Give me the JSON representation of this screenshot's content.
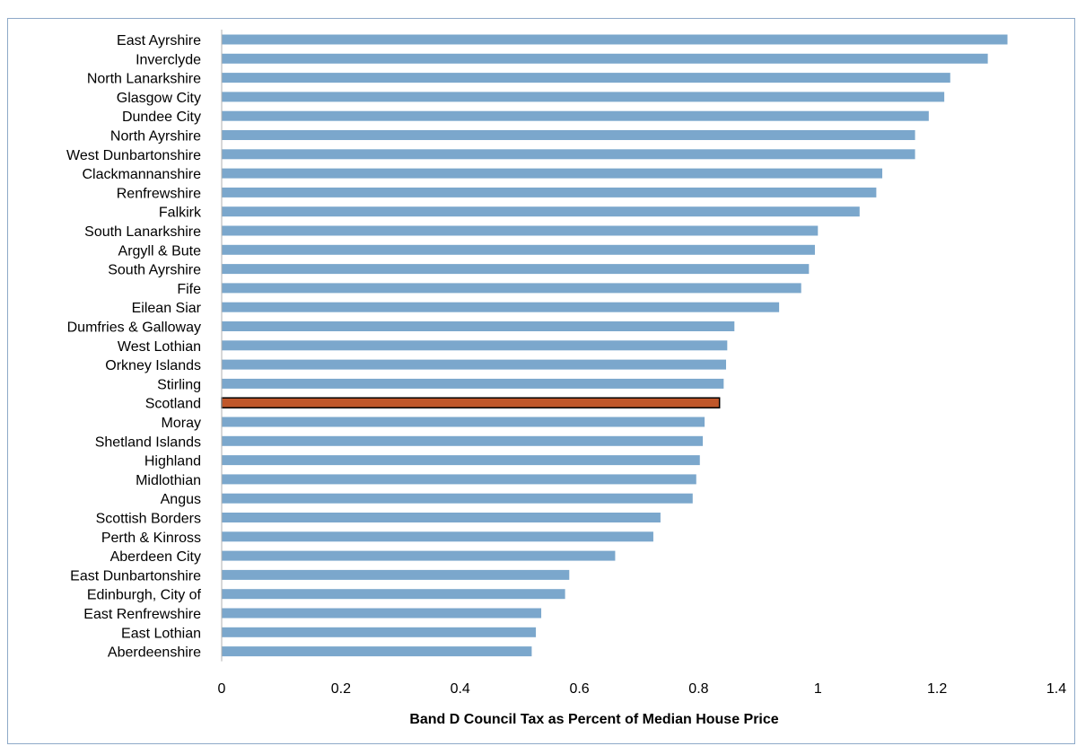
{
  "caption": "",
  "chart_data": {
    "type": "bar",
    "orientation": "horizontal",
    "title": "",
    "xlabel": "Band D Council Tax as Percent of Median  House Price",
    "ylabel": "",
    "xlim": [
      0,
      1.4
    ],
    "xticks": [
      "0",
      "0.2",
      "0.4",
      "0.6",
      "0.8",
      "1",
      "1.2",
      "1.4"
    ],
    "grid": false,
    "legend": "none",
    "bar_color": "#7ba7cc",
    "highlight_color": "#c0572a",
    "highlight_category": "Scotland",
    "categories": [
      "East Ayrshire",
      "Inverclyde",
      "North Lanarkshire",
      "Glasgow City",
      "Dundee City",
      "North Ayrshire",
      "West Dunbartonshire",
      "Clackmannanshire",
      "Renfrewshire",
      "Falkirk",
      "South Lanarkshire",
      "Argyll & Bute",
      "South Ayrshire",
      "Fife",
      "Eilean Siar",
      "Dumfries & Galloway",
      "West Lothian",
      "Orkney Islands",
      "Stirling",
      "Scotland",
      "Moray",
      "Shetland Islands",
      "Highland",
      "Midlothian",
      "Angus",
      "Scottish Borders",
      "Perth & Kinross",
      "Aberdeen City",
      "East Dunbartonshire",
      "Edinburgh, City of",
      "East Renfrewshire",
      "East Lothian",
      "Aberdeenshire"
    ],
    "values": [
      1.318,
      1.285,
      1.222,
      1.212,
      1.186,
      1.163,
      1.163,
      1.108,
      1.098,
      1.07,
      1.0,
      0.995,
      0.985,
      0.972,
      0.935,
      0.86,
      0.848,
      0.846,
      0.842,
      0.835,
      0.81,
      0.807,
      0.802,
      0.796,
      0.79,
      0.736,
      0.724,
      0.66,
      0.583,
      0.576,
      0.536,
      0.527,
      0.52
    ]
  }
}
